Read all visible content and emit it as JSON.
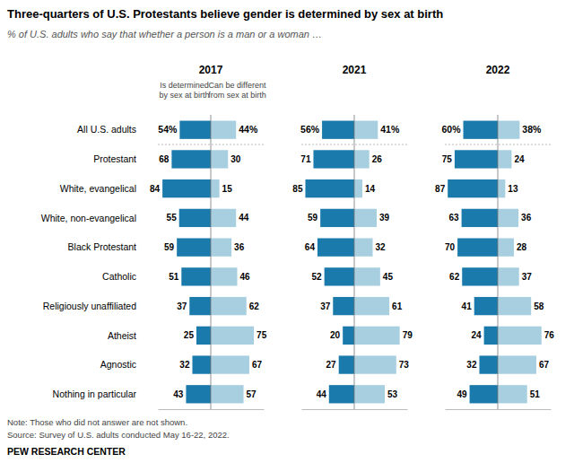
{
  "chart_data": {
    "type": "bar",
    "orientation": "horizontal",
    "title": "Three-quarters of U.S. Protestants believe gender is determined by sex at birth",
    "subtitle": "% of U.S. adults who say that whether a person is a man or a woman …",
    "annotations": [
      "Note: Those who did not answer are not shown.",
      "Source: Survey of U.S. adults conducted May 16-22, 2022.",
      "PEW RESEARCH CENTER"
    ],
    "categories": [
      "All U.S. adults",
      "Protestant",
      "White, evangelical",
      "White, non-evangelical",
      "Black Protestant",
      "Catholic",
      "Religiously unaffiliated",
      "Atheist",
      "Agnostic",
      "Nothing in particular"
    ],
    "xlim": [
      -92,
      92
    ],
    "tick_labels": false,
    "data_labels": true,
    "panels": [
      {
        "title": "2017",
        "series": [
          {
            "name": "Is determined by sex at birth",
            "color": "#1a7aab",
            "values": [
              54,
              68,
              84,
              55,
              59,
              51,
              37,
              25,
              32,
              43
            ],
            "value_labels": [
              "54%",
              "68",
              "84",
              "55",
              "59",
              "51",
              "37",
              "25",
              "32",
              "43"
            ]
          },
          {
            "name": "Can be different from sex at birth",
            "color": "#a8cfe0",
            "values": [
              44,
              30,
              15,
              44,
              36,
              46,
              62,
              75,
              67,
              57
            ],
            "value_labels": [
              "44%",
              "30",
              "15",
              "44",
              "36",
              "46",
              "62",
              "75",
              "67",
              "57"
            ]
          }
        ]
      },
      {
        "title": "2021",
        "series": [
          {
            "color": "#1a7aab",
            "values": [
              56,
              71,
              85,
              59,
              64,
              52,
              37,
              20,
              27,
              44
            ],
            "value_labels": [
              "56%",
              "71",
              "85",
              "59",
              "64",
              "52",
              "37",
              "20",
              "27",
              "44"
            ]
          },
          {
            "color": "#a8cfe0",
            "values": [
              41,
              26,
              14,
              39,
              32,
              45,
              61,
              79,
              73,
              53
            ],
            "value_labels": [
              "41%",
              "26",
              "14",
              "39",
              "32",
              "45",
              "61",
              "79",
              "73",
              "53"
            ]
          }
        ]
      },
      {
        "title": "2022",
        "series": [
          {
            "color": "#1a7aab",
            "values": [
              60,
              75,
              87,
              63,
              70,
              62,
              41,
              24,
              32,
              49
            ],
            "value_labels": [
              "60%",
              "75",
              "87",
              "63",
              "70",
              "62",
              "41",
              "24",
              "32",
              "49"
            ]
          },
          {
            "color": "#a8cfe0",
            "values": [
              38,
              24,
              13,
              36,
              28,
              37,
              58,
              76,
              67,
              51
            ],
            "value_labels": [
              "38%",
              "24",
              "13",
              "36",
              "28",
              "37",
              "58",
              "76",
              "67",
              "51"
            ]
          }
        ]
      }
    ]
  }
}
